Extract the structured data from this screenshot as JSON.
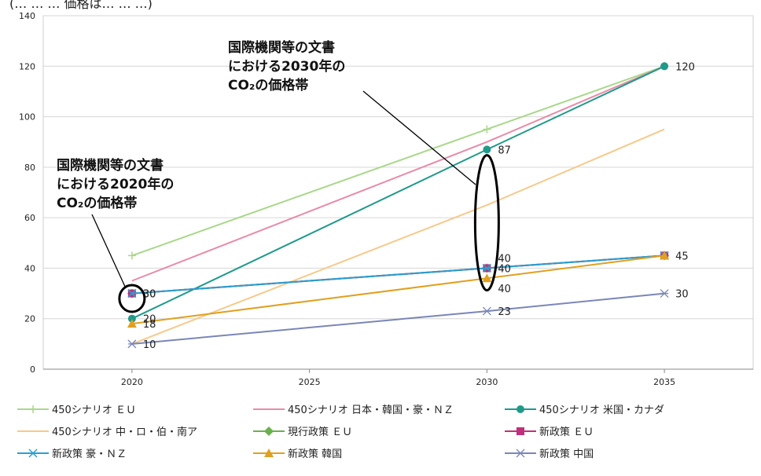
{
  "header_text": "(…  …  … 価格は… … …)",
  "chart_data": {
    "type": "line",
    "title": "",
    "xlabel": "",
    "ylabel": "",
    "x_ticks": [
      2020,
      2025,
      2030,
      2035
    ],
    "y_ticks": [
      0,
      20,
      40,
      60,
      80,
      100,
      120,
      140
    ],
    "xlim": [
      2017.5,
      2037.5
    ],
    "ylim": [
      0,
      140
    ],
    "grid": "horizontal",
    "legend_position": "bottom",
    "series": [
      {
        "name": "450シナリオ ＥＵ",
        "color": "#a8d88a",
        "marker": "plus",
        "points": [
          [
            2020,
            45
          ],
          [
            2030,
            95
          ],
          [
            2035,
            120
          ]
        ]
      },
      {
        "name": "450シナリオ 日本・韓国・豪・ＮＺ",
        "color": "#e88aa8",
        "marker": "none",
        "points": [
          [
            2020,
            35
          ],
          [
            2030,
            90
          ],
          [
            2035,
            120
          ]
        ]
      },
      {
        "name": "450シナリオ 米国・カナダ",
        "color": "#1f9a8a",
        "marker": "circle",
        "points": [
          [
            2020,
            20
          ],
          [
            2030,
            87
          ],
          [
            2035,
            120
          ]
        ]
      },
      {
        "name": "450シナリオ 中・ロ・伯・南ア",
        "color": "#f7c98a",
        "marker": "none",
        "points": [
          [
            2020,
            10
          ],
          [
            2030,
            65
          ],
          [
            2035,
            95
          ]
        ]
      },
      {
        "name": "現行政策 ＥＵ",
        "color": "#6ab04c",
        "marker": "diamond",
        "points": [
          [
            2020,
            30
          ],
          [
            2030,
            40
          ],
          [
            2035,
            45
          ]
        ]
      },
      {
        "name": "新政策 ＥＵ",
        "color": "#c0307a",
        "marker": "square",
        "points": [
          [
            2020,
            30
          ],
          [
            2030,
            40
          ],
          [
            2035,
            45
          ]
        ]
      },
      {
        "name": "新政策 豪・ＮＺ",
        "color": "#2a9fd0",
        "marker": "x",
        "points": [
          [
            2020,
            30
          ],
          [
            2030,
            40
          ],
          [
            2035,
            45
          ]
        ]
      },
      {
        "name": "新政策 韓国",
        "color": "#e0a020",
        "marker": "triangle",
        "points": [
          [
            2020,
            18
          ],
          [
            2030,
            36
          ],
          [
            2035,
            45
          ]
        ]
      },
      {
        "name": "新政策 中国",
        "color": "#7a86b8",
        "marker": "star",
        "points": [
          [
            2020,
            10
          ],
          [
            2030,
            23
          ],
          [
            2035,
            30
          ]
        ]
      }
    ],
    "data_labels": [
      {
        "x": 2020,
        "y": 30,
        "text": "30"
      },
      {
        "x": 2020,
        "y": 30,
        "text": "30"
      },
      {
        "x": 2020,
        "y": 20,
        "text": "20"
      },
      {
        "x": 2020,
        "y": 18,
        "text": "18"
      },
      {
        "x": 2020,
        "y": 10,
        "text": "10"
      },
      {
        "x": 2030,
        "y": 87,
        "text": "87"
      },
      {
        "x": 2030,
        "y": 44,
        "text": "40"
      },
      {
        "x": 2030,
        "y": 40,
        "text": "40"
      },
      {
        "x": 2030,
        "y": 32,
        "text": "40"
      },
      {
        "x": 2030,
        "y": 23,
        "text": "23"
      },
      {
        "x": 2035,
        "y": 120,
        "text": "120"
      },
      {
        "x": 2035,
        "y": 45,
        "text": "45"
      },
      {
        "x": 2035,
        "y": 30,
        "text": "30"
      }
    ],
    "annotations": [
      {
        "lines": [
          "国際機関等の文書",
          "における2030年の",
          "CO₂の価格帯"
        ]
      },
      {
        "lines": [
          "国際機関等の文書",
          "における2020年の",
          "CO₂の価格帯"
        ]
      }
    ]
  }
}
